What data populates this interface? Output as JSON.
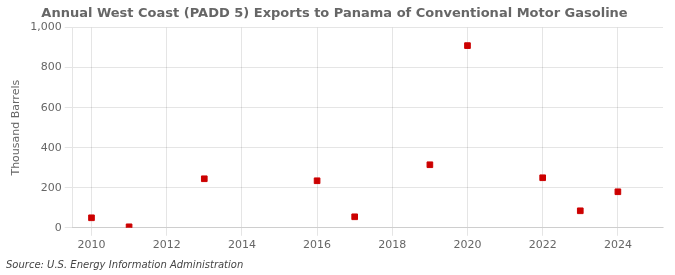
{
  "chart_data": {
    "type": "scatter",
    "title": "Annual West Coast (PADD 5) Exports to Panama of Conventional Motor Gasoline",
    "ylabel": "Thousand Barrels",
    "source": "Source: U.S. Energy Information Administration",
    "x": [
      2010,
      2011,
      2013,
      2016,
      2017,
      2019,
      2020,
      2022,
      2023,
      2024
    ],
    "values": [
      50,
      5,
      245,
      235,
      55,
      315,
      910,
      250,
      85,
      180
    ],
    "color": "#cc0000",
    "marker": "square",
    "xlim": [
      2009.5,
      2025.2
    ],
    "xticks": [
      2010,
      2012,
      2014,
      2016,
      2018,
      2020,
      2022,
      2024
    ],
    "ylim": [
      0,
      1000
    ],
    "yticks": [
      0,
      200,
      400,
      600,
      800,
      {
        "value": 1000,
        "label": "1,000"
      }
    ],
    "grid": true
  }
}
